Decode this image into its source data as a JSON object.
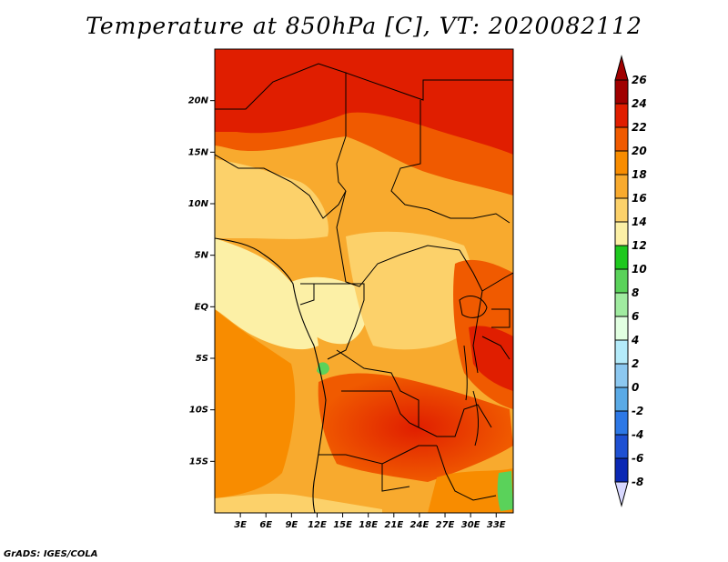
{
  "title": "Temperature at 850hPa [C], VT: 2020082112",
  "credit": "GrADS: IGES/COLA",
  "map": {
    "lat_ticks": [
      {
        "label": "20N",
        "value": 20
      },
      {
        "label": "15N",
        "value": 15
      },
      {
        "label": "10N",
        "value": 10
      },
      {
        "label": "5N",
        "value": 5
      },
      {
        "label": "EQ",
        "value": 0
      },
      {
        "label": "5S",
        "value": -5
      },
      {
        "label": "10S",
        "value": -10
      },
      {
        "label": "15S",
        "value": -15
      }
    ],
    "lon_ticks": [
      {
        "label": "3E",
        "value": 3
      },
      {
        "label": "6E",
        "value": 6
      },
      {
        "label": "9E",
        "value": 9
      },
      {
        "label": "12E",
        "value": 12
      },
      {
        "label": "15E",
        "value": 15
      },
      {
        "label": "18E",
        "value": 18
      },
      {
        "label": "21E",
        "value": 21
      },
      {
        "label": "24E",
        "value": 24
      },
      {
        "label": "27E",
        "value": 27
      },
      {
        "label": "30E",
        "value": 30
      },
      {
        "label": "33E",
        "value": 33
      }
    ],
    "lon_range": [
      0,
      35
    ],
    "lat_range": [
      -20,
      25
    ]
  },
  "colorbar": {
    "bins": [
      {
        "label": "26",
        "color": "#a00000"
      },
      {
        "label": "24",
        "color": "#e01e00"
      },
      {
        "label": "22",
        "color": "#f05a00"
      },
      {
        "label": "20",
        "color": "#f88c00"
      },
      {
        "label": "18",
        "color": "#f8aa2e"
      },
      {
        "label": "16",
        "color": "#fcd16a"
      },
      {
        "label": "14",
        "color": "#fcf0a6"
      },
      {
        "label": "12",
        "color": "#1ec81e"
      },
      {
        "label": "10",
        "color": "#5ad25a"
      },
      {
        "label": "8",
        "color": "#a0eba0"
      },
      {
        "label": "6",
        "color": "#e1ffe1"
      },
      {
        "label": "4",
        "color": "#b4ebfa"
      },
      {
        "label": "2",
        "color": "#8cc8f0"
      },
      {
        "label": "0",
        "color": "#5aaae6"
      },
      {
        "label": "-2",
        "color": "#2d78e6"
      },
      {
        "label": "-4",
        "color": "#1e50d2"
      },
      {
        "label": "-6",
        "color": "#0a28b4"
      },
      {
        "label": "-8",
        "color": "#000a80"
      }
    ],
    "bottom_color": "#d8d8ff"
  }
}
